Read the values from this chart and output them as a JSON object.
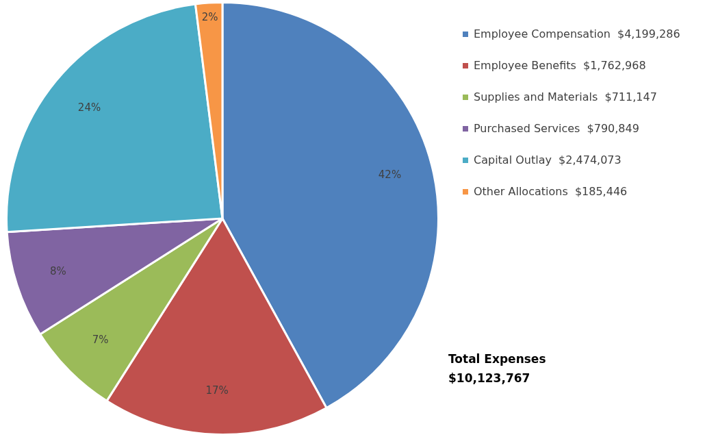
{
  "chart_data": {
    "type": "pie",
    "categories": [
      "Employee Compensation  $4,199,286",
      "Employee Benefits  $1,762,968",
      "Supplies and Materials  $711,147",
      "Purchased Services  $790,849",
      "Capital Outlay  $2,474,073",
      "Other Allocations  $185,446"
    ],
    "values": [
      42,
      17,
      7,
      8,
      24,
      2
    ],
    "colors": [
      "#4f81bd",
      "#c0504d",
      "#9bbb59",
      "#8064a2",
      "#4bacc6",
      "#f79646"
    ],
    "value_labels": [
      "42%",
      "17%",
      "7%",
      "8%",
      "24%",
      "2%"
    ],
    "legend": "right",
    "annotations": [
      "Total Expenses",
      "$10,123,767"
    ]
  }
}
